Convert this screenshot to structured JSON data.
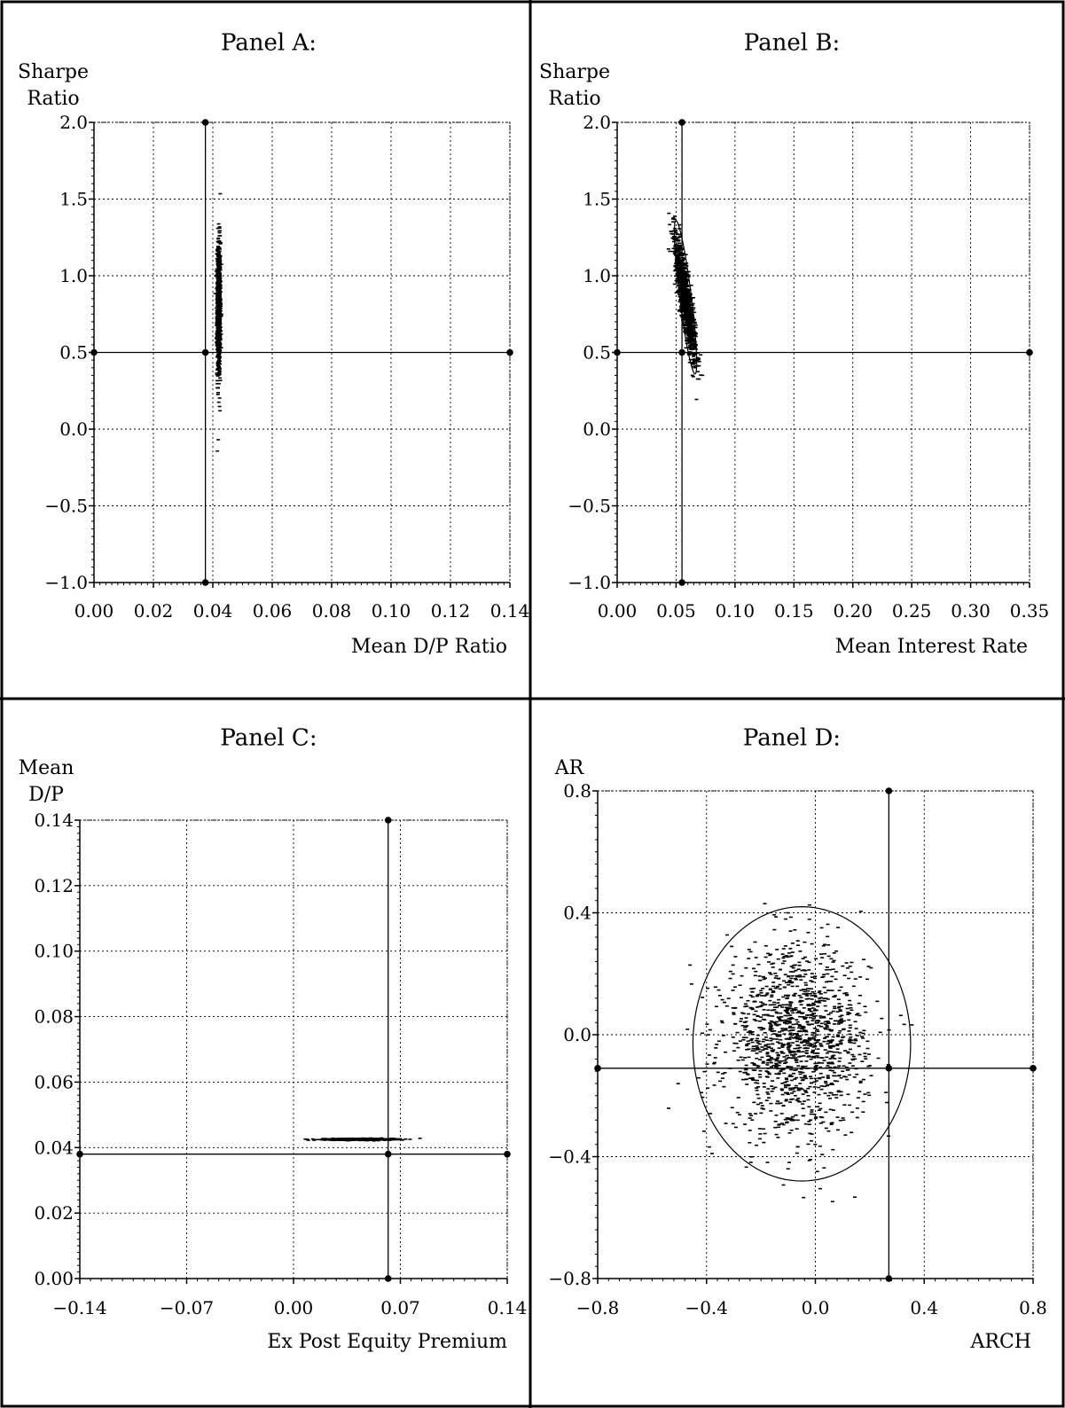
{
  "chart_data": [
    {
      "type": "scatter",
      "title": "Panel A:",
      "ylabel": [
        "Sharpe",
        "Ratio"
      ],
      "xlabel": "Mean D/P Ratio",
      "xlim": [
        0.0,
        0.14
      ],
      "ylim": [
        -1.0,
        2.0
      ],
      "xticks": [
        0.0,
        0.02,
        0.04,
        0.06,
        0.08,
        0.1,
        0.12,
        0.14
      ],
      "xtick_labels": [
        "0.00",
        "0.02",
        "0.04",
        "0.06",
        "0.08",
        "0.10",
        "0.12",
        "0.14"
      ],
      "yticks": [
        -1.0,
        -0.5,
        0.0,
        0.5,
        1.0,
        1.5,
        2.0
      ],
      "ytick_labels": [
        "−1.0",
        "−0.5",
        "0.0",
        "0.5",
        "1.0",
        "1.5",
        "2.0"
      ],
      "grid": true,
      "reference": {
        "x": 0.0375,
        "y": 0.5
      },
      "cloud": {
        "x_mean": 0.042,
        "x_sd": 0.0003,
        "y_mean": 0.78,
        "y_sd": 0.22,
        "rho": 0.0,
        "n": 900
      },
      "ellipse": null
    },
    {
      "type": "scatter",
      "title": "Panel B:",
      "ylabel": [
        "Sharpe",
        "Ratio"
      ],
      "xlabel": "Mean Interest Rate",
      "xlim": [
        0.0,
        0.35
      ],
      "ylim": [
        -1.0,
        2.0
      ],
      "xticks": [
        0.0,
        0.05,
        0.1,
        0.15,
        0.2,
        0.25,
        0.3,
        0.35
      ],
      "xtick_labels": [
        "0.00",
        "0.05",
        "0.10",
        "0.15",
        "0.20",
        "0.25",
        "0.30",
        "0.35"
      ],
      "yticks": [
        -1.0,
        -0.5,
        0.0,
        0.5,
        1.0,
        1.5,
        2.0
      ],
      "ytick_labels": [
        "−1.0",
        "−0.5",
        "0.0",
        "0.5",
        "1.0",
        "1.5",
        "2.0"
      ],
      "grid": true,
      "reference": {
        "x": 0.055,
        "y": 0.5
      },
      "cloud": {
        "x_mean": 0.058,
        "x_sd": 0.0045,
        "y_mean": 0.85,
        "y_sd": 0.2,
        "rho": -0.85,
        "n": 1100
      },
      "ellipse": {
        "cx": 0.058,
        "cy": 0.86,
        "rx": 0.0095,
        "ry": 0.5,
        "rho": -0.85
      }
    },
    {
      "type": "scatter",
      "title": "Panel C:",
      "ylabel": [
        "Mean",
        "D/P"
      ],
      "xlabel": "Ex Post Equity Premium",
      "xlim": [
        -0.14,
        0.14
      ],
      "ylim": [
        0.0,
        0.14
      ],
      "xticks": [
        -0.14,
        -0.07,
        0.0,
        0.07,
        0.14
      ],
      "xtick_labels": [
        "−0.14",
        "−0.07",
        "0.00",
        "0.07",
        "0.14"
      ],
      "yticks": [
        0.0,
        0.02,
        0.04,
        0.06,
        0.08,
        0.1,
        0.12,
        0.14
      ],
      "ytick_labels": [
        "0.00",
        "0.02",
        "0.04",
        "0.06",
        "0.08",
        "0.10",
        "0.12",
        "0.14"
      ],
      "grid": true,
      "reference": {
        "x": 0.062,
        "y": 0.038
      },
      "cloud": {
        "x_mean": 0.043,
        "x_sd": 0.011,
        "y_mean": 0.0425,
        "y_sd": 0.00015,
        "rho": 0.0,
        "n": 800
      },
      "ellipse": null
    },
    {
      "type": "scatter",
      "title": "Panel D:",
      "ylabel": [
        "AR"
      ],
      "xlabel": "ARCH",
      "xlim": [
        -0.8,
        0.8
      ],
      "ylim": [
        -0.8,
        0.8
      ],
      "xticks": [
        -0.8,
        -0.4,
        0.0,
        0.4,
        0.8
      ],
      "xtick_labels": [
        "−0.8",
        "−0.4",
        "0.0",
        "0.4",
        "0.8"
      ],
      "yticks": [
        -0.8,
        -0.4,
        0.0,
        0.4,
        0.8
      ],
      "ytick_labels": [
        "−0.8",
        "−0.4",
        "0.0",
        "0.4",
        "0.8"
      ],
      "grid": true,
      "reference": {
        "x": 0.27,
        "y": -0.11
      },
      "cloud": {
        "x_mean": -0.07,
        "x_sd": 0.13,
        "y_mean": -0.02,
        "y_sd": 0.15,
        "rho": 0.0,
        "n": 1400
      },
      "ellipse": {
        "cx": -0.05,
        "cy": -0.03,
        "rx": 0.4,
        "ry": 0.45,
        "rho": 0.0
      }
    }
  ]
}
